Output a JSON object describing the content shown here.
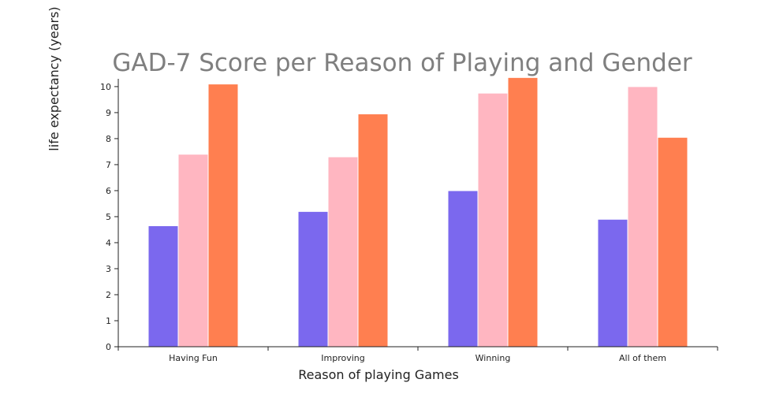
{
  "chart_data": {
    "type": "bar",
    "title": "GAD-7 Score per Reason of Playing and Gender",
    "xlabel": "Reason of playing Games",
    "ylabel": "life expectancy (years)",
    "categories": [
      "Having Fun",
      "Improving",
      "Winning",
      "All of them"
    ],
    "ylim": [
      0,
      10.3
    ],
    "yticks": [
      "0",
      "1",
      "2",
      "3",
      "4",
      "5",
      "6",
      "7",
      "8",
      "9",
      "10"
    ],
    "grid": false,
    "legend": "none",
    "series": [
      {
        "color": "#7b68ee",
        "values": [
          4.65,
          5.2,
          6.0,
          4.9
        ]
      },
      {
        "color": "#ffb6c1",
        "values": [
          7.4,
          7.3,
          9.75,
          10.0
        ]
      },
      {
        "color": "#ff7f50",
        "values": [
          10.1,
          8.95,
          10.35,
          8.05
        ]
      }
    ]
  }
}
